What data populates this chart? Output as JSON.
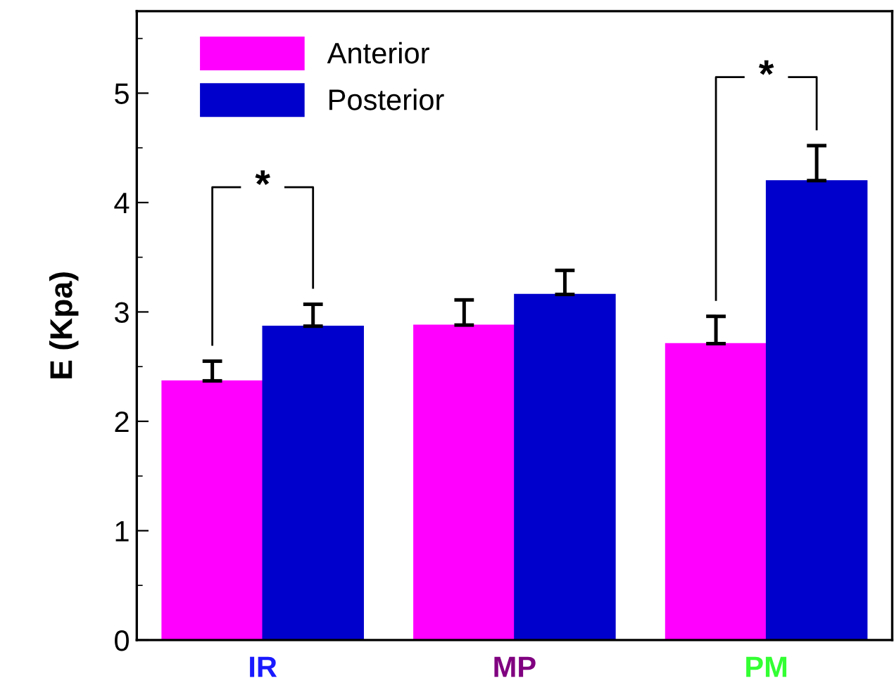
{
  "chart_data": {
    "type": "bar",
    "ylabel": "E (Kpa)",
    "categories": [
      "IR",
      "MP",
      "PM"
    ],
    "series": [
      {
        "name": "Anterior",
        "color": "#ff00ff",
        "values": [
          2.37,
          2.88,
          2.71
        ],
        "errors": [
          0.18,
          0.23,
          0.25
        ]
      },
      {
        "name": "Posterior",
        "color": "#0000cc",
        "values": [
          2.87,
          3.16,
          4.2
        ],
        "errors": [
          0.2,
          0.22,
          0.32
        ]
      }
    ],
    "ylim": [
      0,
      5.75
    ],
    "yticks": [
      0,
      1,
      2,
      3,
      4,
      5
    ],
    "grid": false,
    "legend": "top left",
    "annotations": [
      "*",
      "*"
    ]
  }
}
